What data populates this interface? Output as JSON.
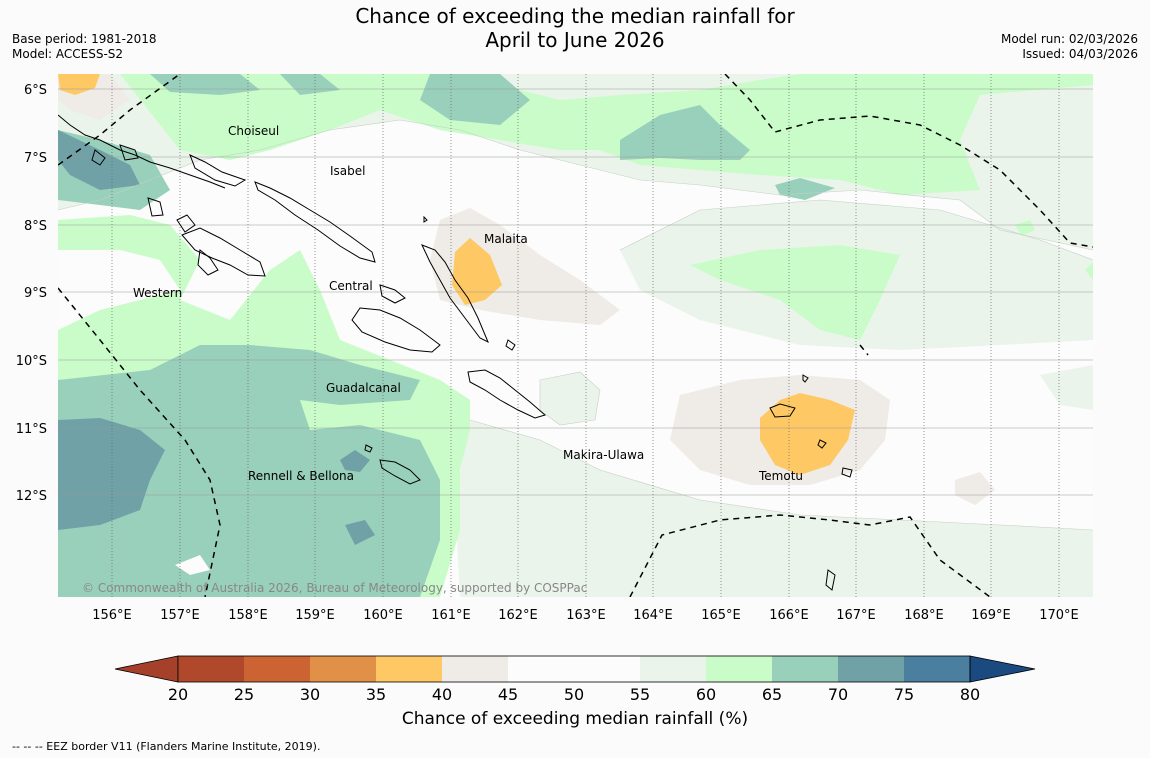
{
  "title": {
    "line1": "Chance of exceeding the median rainfall for",
    "line2": "April to June 2026"
  },
  "meta": {
    "base_period": "Base period: 1981-2018",
    "model": "Model: ACCESS-S2",
    "model_run": "Model run: 02/03/2026",
    "issued": "Issued: 04/03/2026"
  },
  "map": {
    "lat_labels": [
      "6°S",
      "7°S",
      "8°S",
      "9°S",
      "10°S",
      "11°S",
      "12°S"
    ],
    "lon_labels": [
      "156°E",
      "157°E",
      "158°E",
      "159°E",
      "160°E",
      "161°E",
      "162°E",
      "163°E",
      "164°E",
      "165°E",
      "166°E",
      "167°E",
      "168°E",
      "169°E",
      "170°E"
    ],
    "province_labels": [
      "Choiseul",
      "Isabel",
      "Malaita",
      "Western",
      "Central",
      "Guadalcanal",
      "Makira-Ulawa",
      "Rennell & Bellona",
      "Temotu"
    ],
    "copyright": "© Commonwealth of Australia 2026, Bureau of Meteorology, supported by COSPPac"
  },
  "colorbar": {
    "ticks": [
      "20",
      "25",
      "30",
      "35",
      "40",
      "45",
      "50",
      "55",
      "60",
      "65",
      "70",
      "75",
      "80"
    ],
    "colors": [
      "#a5412a",
      "#b0492c",
      "#cc6333",
      "#e19048",
      "#fec964",
      "#efebe6",
      "#fbfcfb",
      "#fbfcfb",
      "#eaf4ea",
      "#c9fcc9",
      "#99d0bb",
      "#6fa1a6",
      "#4a7fa0",
      "#1a4a80"
    ],
    "title": "Chance of exceeding median rainfall (%)"
  },
  "footnote": "--  --  -- EEZ border V11 (Flanders Marine Institute, 2019).",
  "colors": {
    "orange": "#fec964",
    "beige": "#efebe6",
    "white": "#fbfcfb",
    "pale_green": "#eaf4ea",
    "light_green": "#c9fcc9",
    "teal": "#99d0bb",
    "dark_teal": "#6fa1a6"
  }
}
